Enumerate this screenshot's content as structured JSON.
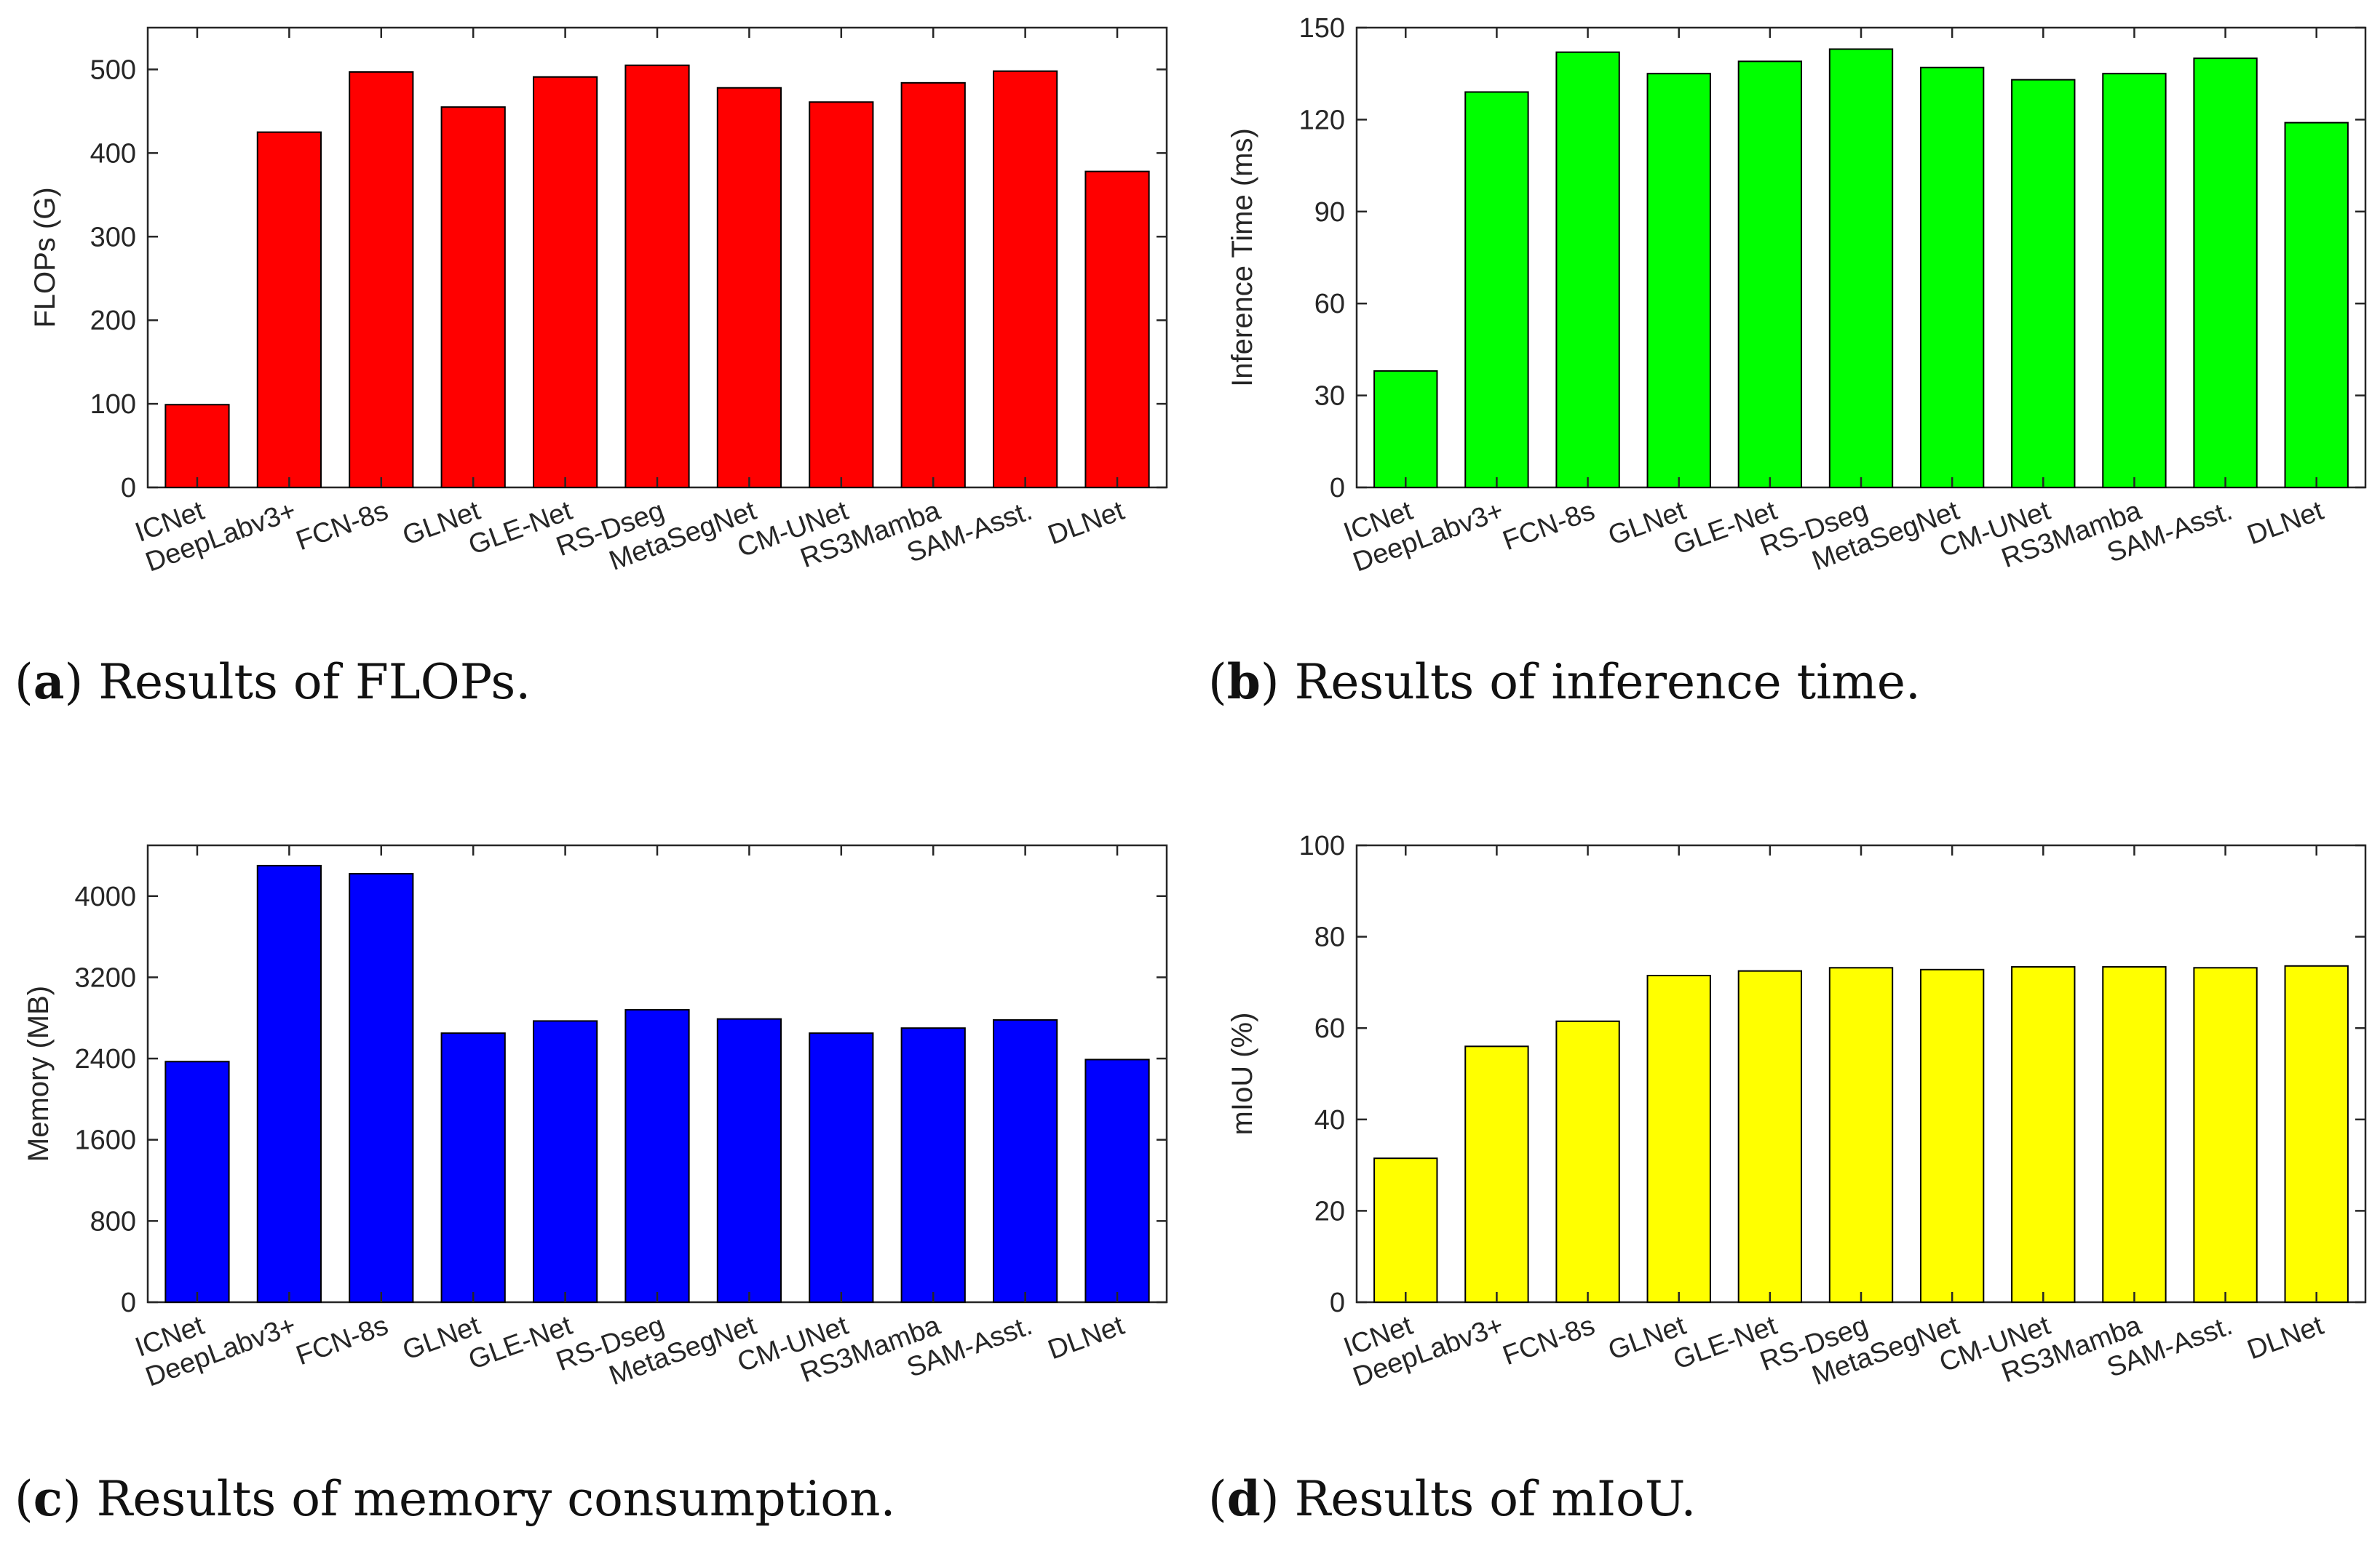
{
  "chart_data": [
    {
      "type": "bar",
      "caption": {
        "letter": "a",
        "text": ") Results of FLOPs."
      },
      "ylabel": "FLOPs (G)",
      "xlabel": "",
      "color": "#ff0000",
      "ylim": [
        0,
        550
      ],
      "yticks": [
        0,
        100,
        200,
        300,
        400,
        500
      ],
      "categories": [
        "ICNet",
        "DeepLabv3+",
        "FCN-8s",
        "GLNet",
        "GLE-Net",
        "RS-Dseg",
        "MetaSegNet",
        "CM-UNet",
        "RS3Mamba",
        "SAM-Asst.",
        "DLNet"
      ],
      "values": [
        99,
        425,
        497,
        455,
        491,
        505,
        478,
        461,
        484,
        498,
        378
      ],
      "grid": false
    },
    {
      "type": "bar",
      "caption": {
        "letter": "b",
        "text": ") Results of inference time."
      },
      "ylabel": "Inference Time (ms)",
      "xlabel": "",
      "color": "#00ff00",
      "ylim": [
        0,
        150
      ],
      "yticks": [
        0,
        30,
        60,
        90,
        120,
        150
      ],
      "categories": [
        "ICNet",
        "DeepLabv3+",
        "FCN-8s",
        "GLNet",
        "GLE-Net",
        "RS-Dseg",
        "MetaSegNet",
        "CM-UNet",
        "RS3Mamba",
        "SAM-Asst.",
        "DLNet"
      ],
      "values": [
        38,
        129,
        142,
        135,
        139,
        143,
        137,
        133,
        135,
        140,
        119
      ],
      "grid": false
    },
    {
      "type": "bar",
      "caption": {
        "letter": "c",
        "text": ") Results of memory consumption."
      },
      "ylabel": "Memory (MB)",
      "xlabel": "",
      "color": "#0000ff",
      "ylim": [
        0,
        4500
      ],
      "yticks": [
        0,
        800,
        1600,
        2400,
        3200,
        4000
      ],
      "categories": [
        "ICNet",
        "DeepLabv3+",
        "FCN-8s",
        "GLNet",
        "GLE-Net",
        "RS-Dseg",
        "MetaSegNet",
        "CM-UNet",
        "RS3Mamba",
        "SAM-Asst.",
        "DLNet"
      ],
      "values": [
        2370,
        4300,
        4220,
        2650,
        2770,
        2880,
        2790,
        2650,
        2700,
        2780,
        2390
      ],
      "grid": false
    },
    {
      "type": "bar",
      "caption": {
        "letter": "d",
        "text": ") Results of mIoU."
      },
      "ylabel": "mIoU (%)",
      "xlabel": "",
      "color": "#ffff00",
      "ylim": [
        0,
        100
      ],
      "yticks": [
        0,
        20,
        40,
        60,
        80,
        100
      ],
      "categories": [
        "ICNet",
        "DeepLabv3+",
        "FCN-8s",
        "GLNet",
        "GLE-Net",
        "RS-Dseg",
        "MetaSegNet",
        "CM-UNet",
        "RS3Mamba",
        "SAM-Asst.",
        "DLNet"
      ],
      "values": [
        31.5,
        56,
        61.5,
        71.5,
        72.5,
        73.2,
        72.8,
        73.4,
        73.4,
        73.2,
        73.6
      ],
      "grid": false
    }
  ]
}
